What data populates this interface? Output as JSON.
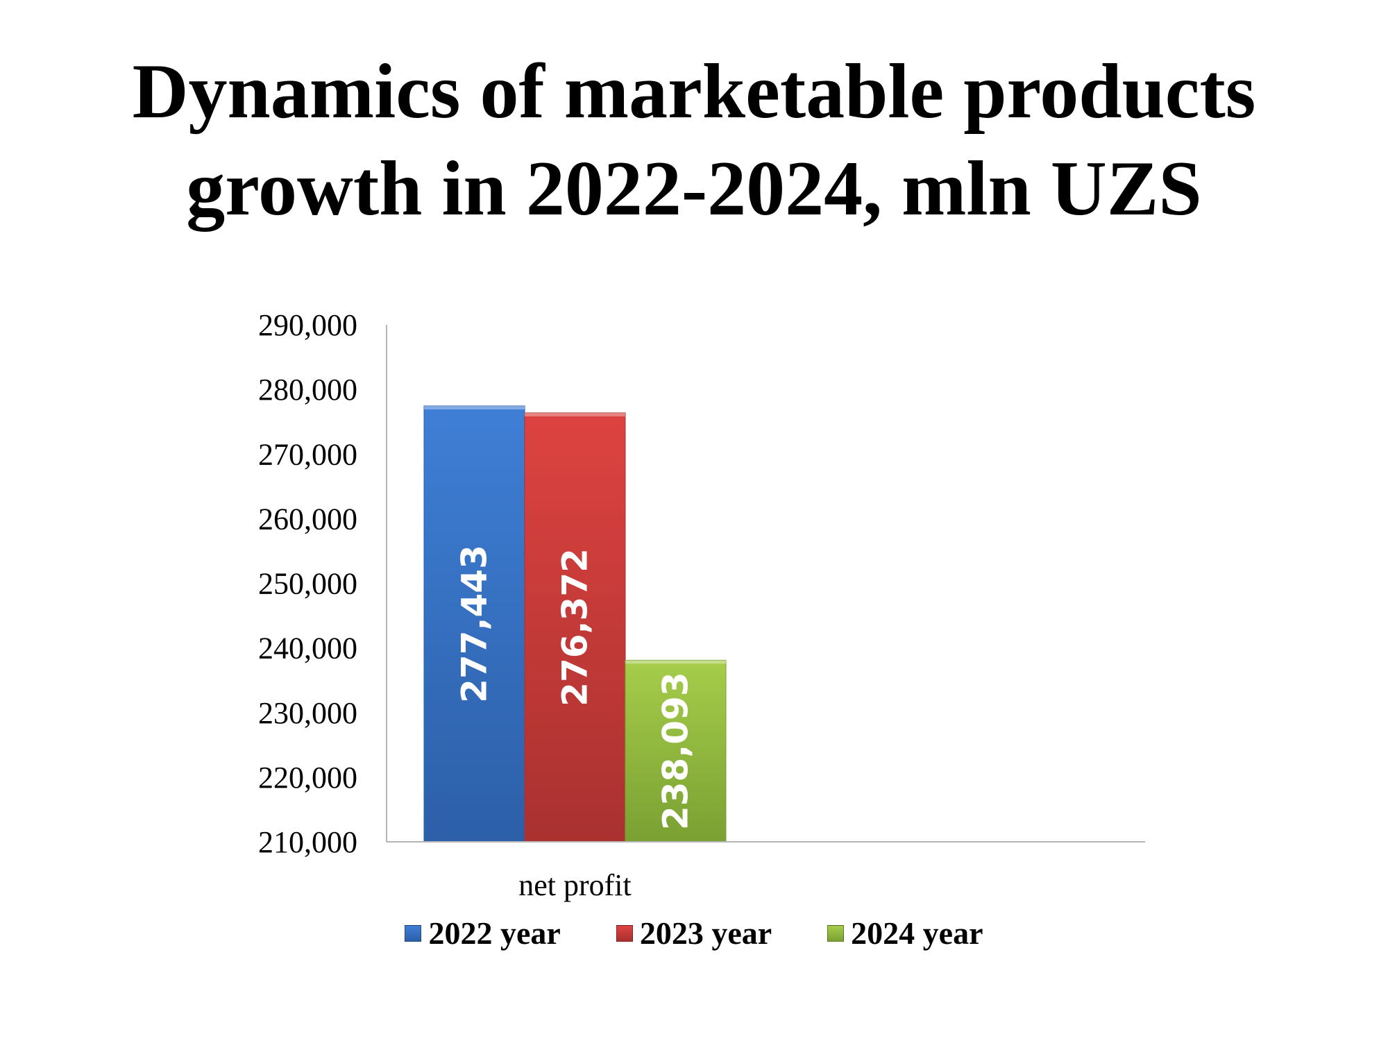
{
  "chart_data": {
    "type": "bar",
    "title": [
      "Dynamics of marketable products",
      "growth in 2022-2024, mln UZS"
    ],
    "categories": [
      "net profit"
    ],
    "series": [
      {
        "name": "2022 year",
        "values": [
          277443
        ],
        "label": "277,443",
        "color": "#3f7fd6",
        "color_dark": "#2c5fa8"
      },
      {
        "name": "2023 year",
        "values": [
          276372
        ],
        "label": "276,372",
        "color": "#dd4340",
        "color_dark": "#a93130"
      },
      {
        "name": "2024 year",
        "values": [
          238093
        ],
        "label": "238,093",
        "color": "#a6cd4a",
        "color_dark": "#7aa033"
      }
    ],
    "ylim": [
      210000,
      290000
    ],
    "yticks": [
      "290,000",
      "280,000",
      "270,000",
      "260,000",
      "250,000",
      "240,000",
      "230,000",
      "220,000",
      "210,000"
    ],
    "ytick_values": [
      290000,
      280000,
      270000,
      260000,
      250000,
      240000,
      230000,
      220000,
      210000
    ],
    "xlabel": "",
    "ylabel": "",
    "grid": false,
    "legend_position": "bottom"
  }
}
